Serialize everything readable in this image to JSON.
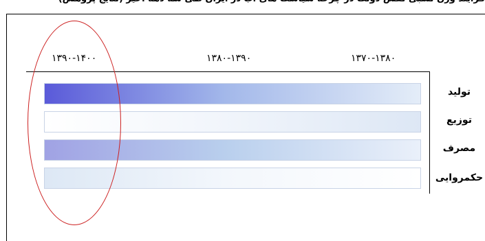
{
  "caption": "فرایند وزن نسبی نقش دولت در چرخه سیاست های آب در ایران طی سه دهه اخیر (نتایج پژوهش)",
  "periods": [
    "۱۳۹۰-۱۴۰۰",
    "۱۳۸۰-۱۳۹۰",
    "۱۳۷۰-۱۳۸۰"
  ],
  "rows": [
    {
      "label": "تولید",
      "gradient_start_color": "#5a5ad9",
      "gradient_mid_color": "#a3b8ea",
      "gradient_end_color": "#e4edf8"
    },
    {
      "label": "توزیع",
      "gradient_start_color": "#ffffff",
      "gradient_mid_color": "#f1f5fb",
      "gradient_end_color": "#dde7f5"
    },
    {
      "label": "مصرف",
      "gradient_start_color": "#a0a2e4",
      "gradient_mid_color": "#b9cfed",
      "gradient_end_color": "#eaf0fa"
    },
    {
      "label": "حکمروایی",
      "gradient_start_color": "#dde8f5",
      "gradient_mid_color": "#f3f7fc",
      "gradient_end_color": "#ffffff"
    }
  ],
  "colors": {
    "highlight_ellipse": "#cc1f1f",
    "axis": "#000000",
    "bar_border": "#c8d3e6"
  }
}
